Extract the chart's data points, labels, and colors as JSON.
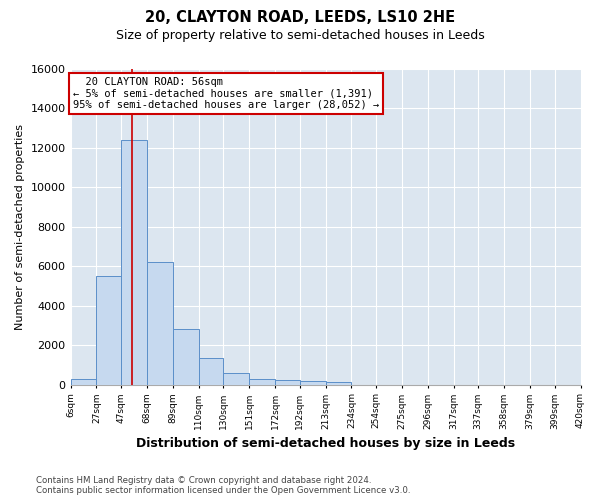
{
  "title": "20, CLAYTON ROAD, LEEDS, LS10 2HE",
  "subtitle": "Size of property relative to semi-detached houses in Leeds",
  "xlabel": "Distribution of semi-detached houses by size in Leeds",
  "ylabel": "Number of semi-detached properties",
  "property_label": "20 CLAYTON ROAD: 56sqm",
  "pct_smaller": 5,
  "pct_smaller_count": 1391,
  "pct_larger": 95,
  "pct_larger_count": 28052,
  "bin_edges": [
    6,
    27,
    47,
    68,
    89,
    110,
    130,
    151,
    172,
    192,
    213,
    234,
    254,
    275,
    296,
    317,
    337,
    358,
    379,
    399,
    420
  ],
  "bin_labels": [
    "6sqm",
    "27sqm",
    "47sqm",
    "68sqm",
    "89sqm",
    "110sqm",
    "130sqm",
    "151sqm",
    "172sqm",
    "192sqm",
    "213sqm",
    "234sqm",
    "254sqm",
    "275sqm",
    "296sqm",
    "317sqm",
    "337sqm",
    "358sqm",
    "379sqm",
    "399sqm",
    "420sqm"
  ],
  "bar_heights": [
    300,
    5500,
    12400,
    6200,
    2800,
    1350,
    600,
    300,
    220,
    160,
    130,
    0,
    0,
    0,
    0,
    0,
    0,
    0,
    0,
    0
  ],
  "bar_color": "#c6d9ef",
  "bar_edge_color": "#5b8fc9",
  "vline_x": 56,
  "vline_color": "#cc0000",
  "annotation_box_color": "#cc0000",
  "ylim": [
    0,
    16000
  ],
  "yticks": [
    0,
    2000,
    4000,
    6000,
    8000,
    10000,
    12000,
    14000,
    16000
  ],
  "fig_bg_color": "#ffffff",
  "plot_bg_color": "#dce6f0",
  "grid_color": "#ffffff",
  "footnote": "Contains HM Land Registry data © Crown copyright and database right 2024.\nContains public sector information licensed under the Open Government Licence v3.0."
}
